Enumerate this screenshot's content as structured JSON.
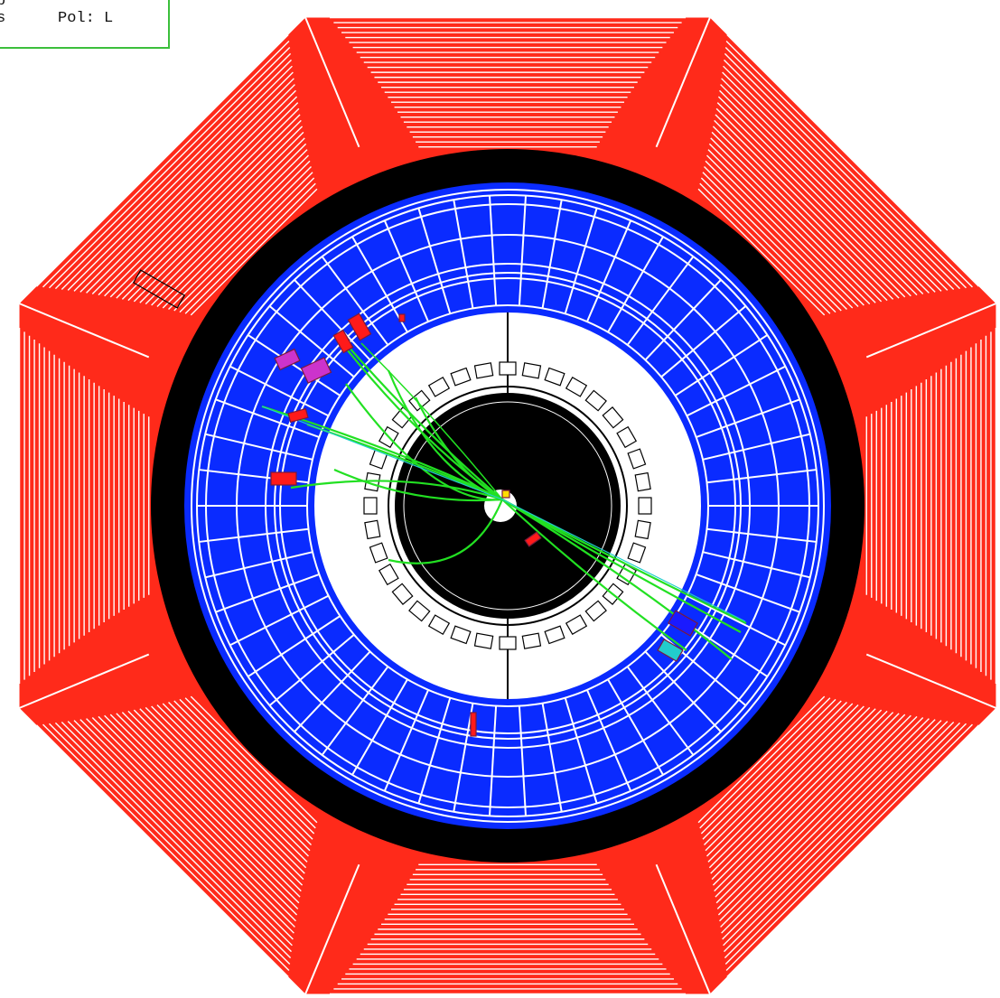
{
  "info_box": {
    "line1": "b",
    "line2": "s",
    "polarization": "Pol: L"
  },
  "colors": {
    "background": "#ffffff",
    "muon_system": "#ff2a1a",
    "muon_lines": "#ffffff",
    "coil": "#000000",
    "hadron_calorimeter": "#0a2bff",
    "hadron_lines": "#ffffff",
    "em_calorimeter_region": "#ffffff",
    "tracker": "#000000",
    "tracks": "#22e022",
    "deposits_red": "#ff1a1a",
    "deposits_magenta": "#cc33cc",
    "deposits_cyan": "#22cccc",
    "info_border": "#3cbf3c"
  },
  "layers": [
    "muon-chambers",
    "solenoid-coil",
    "hadron-calorimeter",
    "em-calorimeter",
    "tracker",
    "particle-tracks"
  ]
}
